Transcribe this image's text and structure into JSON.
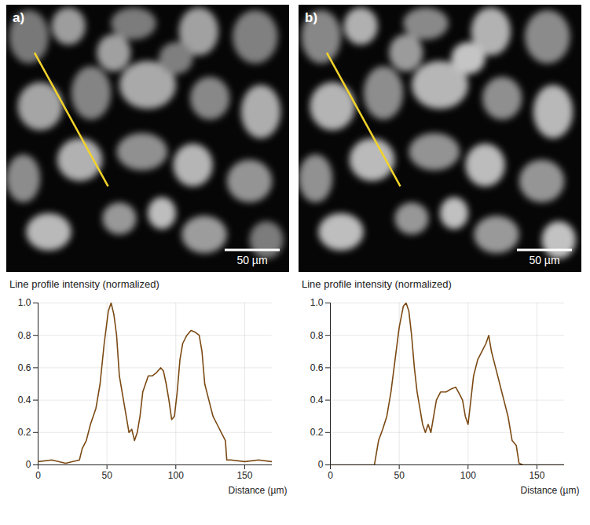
{
  "chart_data": [
    {
      "type": "line",
      "panel_label": "a)",
      "scale_bar_label": "50 µm",
      "title": "Line profile intensity (normalized)",
      "x_label": "Distance (µm)",
      "color": "#7b4a14",
      "grid": true,
      "xlim": [
        0,
        170
      ],
      "xticks": [
        0,
        50,
        100,
        150
      ],
      "ylim": [
        0,
        1
      ],
      "yticks": [
        0,
        0.2,
        0.4,
        0.6,
        0.8,
        {
          "value": 1,
          "label": "1.0"
        }
      ],
      "x": [
        0,
        10,
        20,
        30,
        32,
        35,
        38,
        42,
        45,
        48,
        51,
        53,
        55,
        57,
        59,
        62,
        64,
        66,
        68,
        70,
        72,
        74,
        76,
        78,
        80,
        83,
        86,
        89,
        91,
        93,
        95,
        97,
        99,
        101,
        103,
        105,
        108,
        111,
        114,
        117,
        119,
        121,
        124,
        127,
        130,
        133,
        136,
        137,
        140,
        150,
        160,
        170
      ],
      "values": [
        0.02,
        0.03,
        0.01,
        0.03,
        0.1,
        0.15,
        0.25,
        0.35,
        0.5,
        0.75,
        0.95,
        1.0,
        0.93,
        0.8,
        0.55,
        0.4,
        0.3,
        0.2,
        0.22,
        0.15,
        0.2,
        0.3,
        0.45,
        0.5,
        0.55,
        0.55,
        0.57,
        0.6,
        0.58,
        0.5,
        0.4,
        0.28,
        0.3,
        0.45,
        0.65,
        0.75,
        0.8,
        0.83,
        0.82,
        0.8,
        0.7,
        0.5,
        0.4,
        0.3,
        0.25,
        0.2,
        0.15,
        0.03,
        0.03,
        0.02,
        0.03,
        0.02
      ]
    },
    {
      "type": "line",
      "panel_label": "b)",
      "scale_bar_label": "50 µm",
      "title": "Line profile intensity (normalized)",
      "x_label": "Distance (µm)",
      "color": "#7b4a14",
      "grid": true,
      "xlim": [
        0,
        170
      ],
      "xticks": [
        0,
        50,
        100,
        150
      ],
      "ylim": [
        0,
        1
      ],
      "yticks": [
        0,
        0.2,
        0.4,
        0.6,
        0.8,
        {
          "value": 1,
          "label": "1.0"
        }
      ],
      "x": [
        0,
        10,
        20,
        32,
        33,
        35,
        38,
        41,
        44,
        47,
        50,
        53,
        55,
        57,
        59,
        61,
        63,
        65,
        67,
        69,
        71,
        73,
        75,
        77,
        80,
        84,
        88,
        91,
        93,
        96,
        98,
        100,
        102,
        104,
        107,
        110,
        113,
        115,
        117,
        120,
        123,
        126,
        129,
        132,
        135,
        137,
        140,
        150,
        160,
        170
      ],
      "values": [
        0,
        0,
        0,
        0,
        0.05,
        0.15,
        0.22,
        0.3,
        0.45,
        0.65,
        0.85,
        0.98,
        1.0,
        0.95,
        0.8,
        0.6,
        0.45,
        0.35,
        0.25,
        0.2,
        0.25,
        0.2,
        0.3,
        0.4,
        0.45,
        0.45,
        0.47,
        0.48,
        0.45,
        0.4,
        0.3,
        0.25,
        0.4,
        0.55,
        0.65,
        0.7,
        0.75,
        0.8,
        0.7,
        0.6,
        0.5,
        0.4,
        0.3,
        0.15,
        0.12,
        0.01,
        0,
        0,
        0,
        0
      ]
    }
  ]
}
